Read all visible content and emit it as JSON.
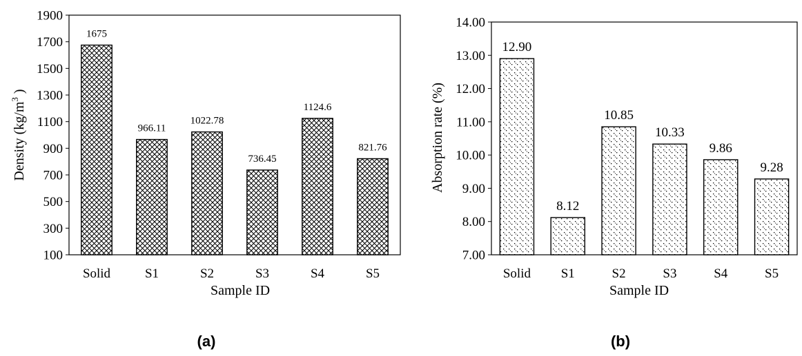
{
  "chart_data": [
    {
      "type": "bar",
      "panel_label": "(a)",
      "title": "",
      "xlabel": "Sample ID",
      "ylabel": "Density (kg/m3 )",
      "ylabel_parts": {
        "before": "Density (kg/m",
        "sup": "3",
        "after": " )"
      },
      "categories": [
        "Solid",
        "S1",
        "S2",
        "S3",
        "S4",
        "S5"
      ],
      "values": [
        1675,
        966.11,
        1022.78,
        736.45,
        1124.6,
        821.76
      ],
      "data_labels": [
        "1675",
        "966.11",
        "1022.78",
        "736.45",
        "1124.6",
        "821.76"
      ],
      "ylim": [
        100,
        1900
      ],
      "yticks": [
        100,
        300,
        500,
        700,
        900,
        1100,
        1300,
        1500,
        1700,
        1900
      ],
      "ytick_labels": [
        "100",
        "300",
        "500",
        "700",
        "900",
        "1100",
        "1300",
        "1500",
        "1700",
        "1900"
      ],
      "fill_pattern": "crosshatch",
      "grid": false,
      "legend": "none"
    },
    {
      "type": "bar",
      "panel_label": "(b)",
      "title": "",
      "xlabel": "Sample ID",
      "ylabel": "Absorption rate (%)",
      "categories": [
        "Solid",
        "S1",
        "S2",
        "S3",
        "S4",
        "S5"
      ],
      "values": [
        12.9,
        8.12,
        10.85,
        10.33,
        9.86,
        9.28
      ],
      "data_labels": [
        "12.90",
        "8.12",
        "10.85",
        "10.33",
        "9.86",
        "9.28"
      ],
      "ylim": [
        7,
        14
      ],
      "yticks": [
        7,
        8,
        9,
        10,
        11,
        12,
        13,
        14
      ],
      "ytick_labels": [
        "7.00",
        "8.00",
        "9.00",
        "10.00",
        "11.00",
        "12.00",
        "13.00",
        "14.00"
      ],
      "fill_pattern": "dots",
      "grid": false,
      "legend": "none"
    }
  ]
}
